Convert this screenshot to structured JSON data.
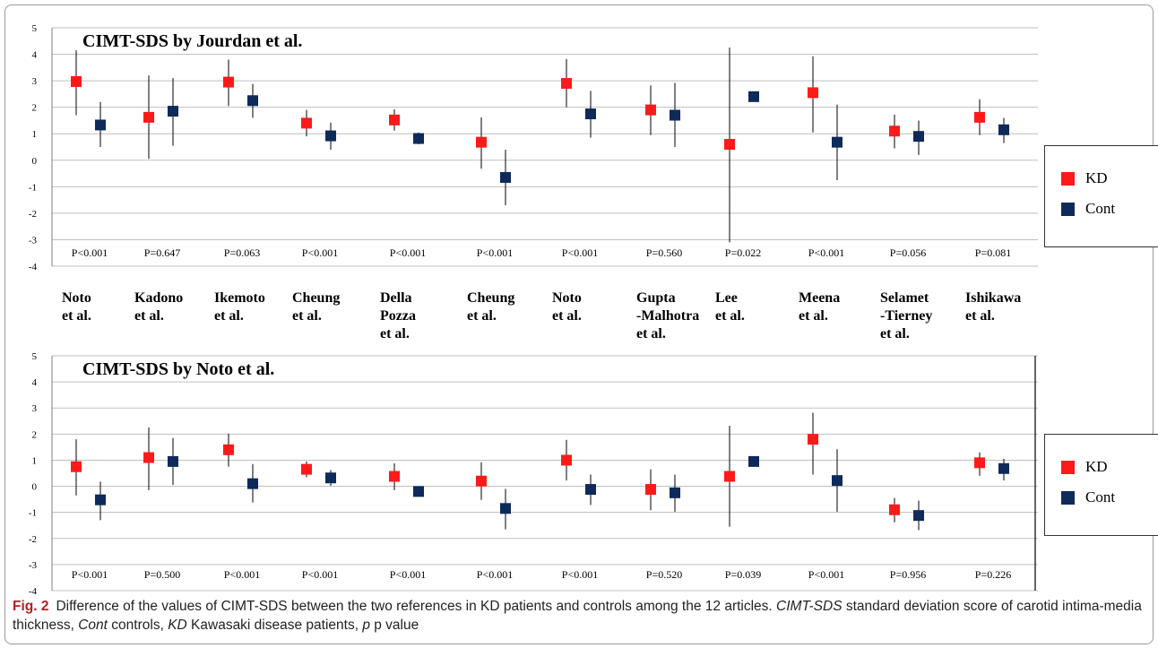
{
  "figure": {
    "caption_label": "Fig. 2",
    "caption_seg1": "Difference of the values of CIMT-SDS between the two references in KD patients and controls among the 12 articles. ",
    "caption_abbr1": "CIMT-SDS",
    "caption_seg2": " standard deviation score of carotid intima-media thickness, ",
    "caption_abbr2": "Cont",
    "caption_seg3": " controls, ",
    "caption_abbr3": "KD",
    "caption_seg4": " Kawasaki disease patients, ",
    "caption_abbr4": "p",
    "caption_seg5": " p value"
  },
  "legend": {
    "kd_label": "KD",
    "cont_label": "Cont"
  },
  "colors": {
    "kd": "#ff1a1a",
    "cont": "#0e2a5a",
    "error_bar": "#000000",
    "grid": "#bfbfbf"
  },
  "chart_data": [
    {
      "type": "scatter",
      "title": "CIMT-SDS by Jourdan et al.",
      "ylim": [
        -4,
        5
      ],
      "yticks": [
        -4,
        -3,
        -2,
        -1,
        0,
        1,
        2,
        3,
        4,
        5
      ],
      "grid": true,
      "legend_position": "right",
      "categories": [
        [
          "Noto",
          "et al."
        ],
        [
          "Kadono",
          "et al."
        ],
        [
          "Ikemoto",
          "et al."
        ],
        [
          "Cheung",
          "et al."
        ],
        [
          "Della",
          "Pozza",
          "et al."
        ],
        [
          "Cheung",
          "et al."
        ],
        [
          "Noto",
          "et al."
        ],
        [
          "Gupta",
          "-Malhotra",
          "et al."
        ],
        [
          "Lee",
          "et al."
        ],
        [
          "Meena",
          "et al."
        ],
        [
          "Selamet",
          "-Tierney",
          "et al."
        ],
        [
          "Ishikawa",
          "et al."
        ]
      ],
      "p_values": [
        "P<0.001",
        "P=0.647",
        "P=0.063",
        "P<0.001",
        "P<0.001",
        "P<0.001",
        "P<0.001",
        "P=0.560",
        "P=0.022",
        "P<0.001",
        "P=0.056",
        "P=0.081"
      ],
      "series": [
        {
          "name": "KD",
          "values": [
            2.97,
            1.62,
            2.95,
            1.4,
            1.52,
            0.68,
            2.9,
            1.9,
            0.6,
            2.55,
            1.1,
            1.62
          ],
          "err_low": [
            1.7,
            0.05,
            2.05,
            0.9,
            1.12,
            -0.32,
            2.0,
            0.95,
            -3.1,
            1.05,
            0.45,
            0.95
          ],
          "err_high": [
            4.15,
            3.2,
            3.8,
            1.9,
            1.92,
            1.62,
            3.82,
            2.82,
            4.25,
            3.92,
            1.72,
            2.3
          ]
        },
        {
          "name": "Cont",
          "values": [
            1.33,
            1.85,
            2.25,
            0.92,
            0.82,
            -0.65,
            1.75,
            1.7,
            2.4,
            0.68,
            0.9,
            1.15
          ],
          "err_low": [
            0.5,
            0.55,
            1.6,
            0.4,
            0.6,
            -1.7,
            0.85,
            0.5,
            2.4,
            -0.75,
            0.2,
            0.65
          ],
          "err_high": [
            2.2,
            3.1,
            2.88,
            1.42,
            1.05,
            0.4,
            2.62,
            2.92,
            2.4,
            2.1,
            1.5,
            1.6
          ]
        }
      ]
    },
    {
      "type": "scatter",
      "title": "CIMT-SDS by Noto et al.",
      "ylim": [
        -4,
        5
      ],
      "yticks": [
        -4,
        -3,
        -2,
        -1,
        0,
        1,
        2,
        3,
        4,
        5
      ],
      "grid": true,
      "legend_position": "right",
      "p_values": [
        "P<0.001",
        "P=0.500",
        "P<0.001",
        "P<0.001",
        "P<0.001",
        "P<0.001",
        "P<0.001",
        "P=0.520",
        "P=0.039",
        "P<0.001",
        "P=0.956",
        "P=0.226"
      ],
      "series": [
        {
          "name": "KD",
          "values": [
            0.75,
            1.1,
            1.4,
            0.65,
            0.38,
            0.2,
            1.0,
            -0.12,
            0.38,
            1.8,
            -0.9,
            0.9
          ],
          "err_low": [
            -0.35,
            -0.15,
            0.75,
            0.35,
            -0.15,
            -0.52,
            0.22,
            -0.92,
            -1.55,
            0.45,
            -1.38,
            0.4
          ],
          "err_high": [
            1.8,
            2.25,
            2.02,
            0.95,
            0.88,
            0.92,
            1.78,
            0.65,
            2.32,
            2.82,
            -0.45,
            1.3
          ]
        },
        {
          "name": "Cont",
          "values": [
            -0.52,
            0.95,
            0.1,
            0.32,
            -0.2,
            -0.85,
            -0.12,
            -0.25,
            0.95,
            0.22,
            -1.12,
            0.68
          ],
          "err_low": [
            -1.3,
            0.05,
            -0.62,
            0.02,
            -0.32,
            -1.65,
            -0.72,
            -0.98,
            0.95,
            -0.98,
            -1.68,
            0.22
          ],
          "err_high": [
            0.18,
            1.85,
            0.85,
            0.62,
            -0.08,
            -0.1,
            0.45,
            0.45,
            0.95,
            1.42,
            -0.55,
            1.05
          ]
        }
      ]
    }
  ]
}
